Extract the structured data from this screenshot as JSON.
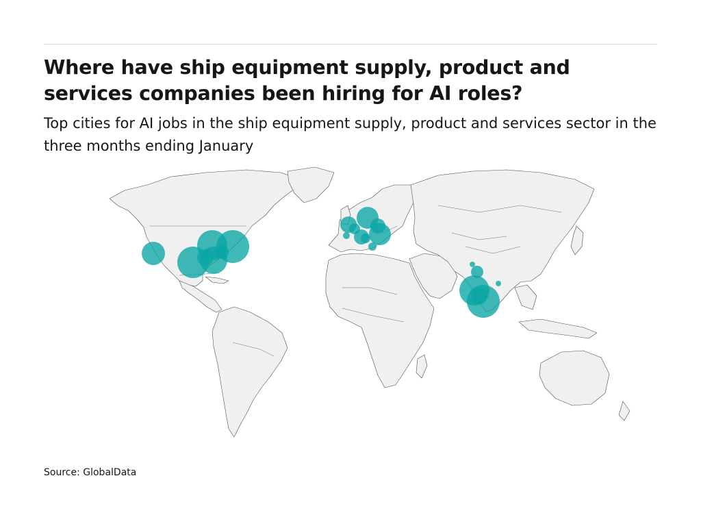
{
  "header": {
    "title": "Where have ship equipment supply, product and services companies been hiring for AI roles?",
    "subtitle": "Top cities for AI jobs in the ship equipment supply, product and services sector in the three months ending January"
  },
  "footer": {
    "source": "Source: GlobalData"
  },
  "map_data": {
    "type": "bubble-map",
    "basemap": "world",
    "land_color": "#f0f0f0",
    "border_color": "#555555",
    "bubble_color": "#0aa5a5",
    "bubble_opacity": 0.78,
    "regions_with_bubbles": [
      "United States",
      "Europe",
      "India"
    ]
  }
}
